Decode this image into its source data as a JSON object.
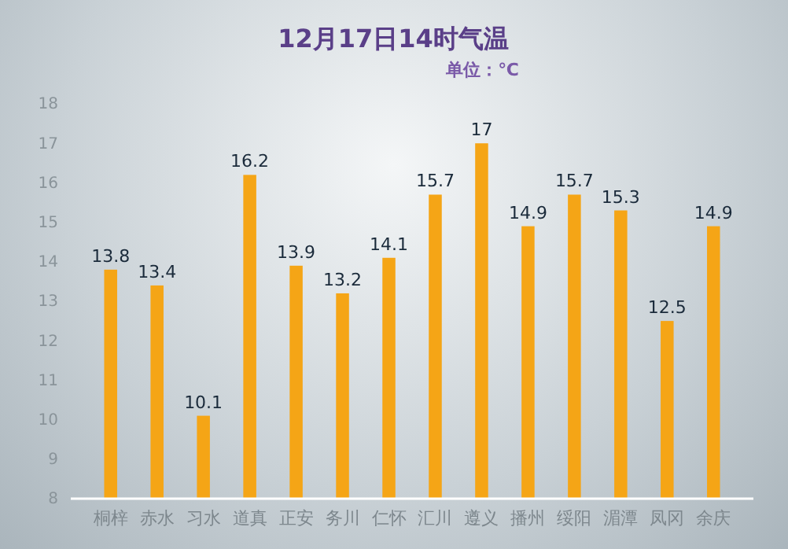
{
  "chart_data": {
    "type": "bar",
    "title": "12月17日14时气温",
    "subtitle": "单位：℃",
    "categories": [
      "桐梓",
      "赤水",
      "习水",
      "道真",
      "正安",
      "务川",
      "仁怀",
      "汇川",
      "遵义",
      "播州",
      "绥阳",
      "湄潭",
      "凤冈",
      "余庆"
    ],
    "values": [
      13.8,
      13.4,
      10.1,
      16.2,
      13.9,
      13.2,
      14.1,
      15.7,
      17,
      14.9,
      15.7,
      15.3,
      12.5,
      14.9
    ],
    "color": "#f5a516",
    "ylim": [
      8,
      18
    ],
    "yticks": [
      8,
      9,
      10,
      11,
      12,
      13,
      14,
      15,
      16,
      17,
      18
    ],
    "data_labels": true,
    "grid": false
  }
}
